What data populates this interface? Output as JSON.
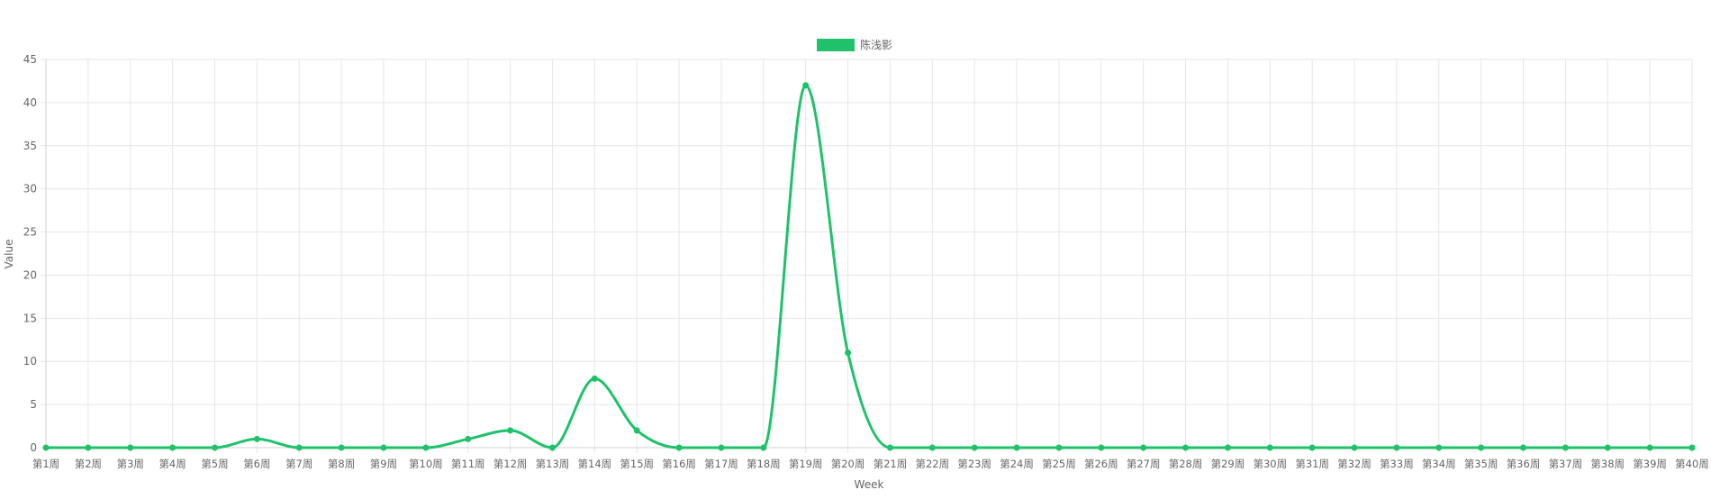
{
  "chart_data": {
    "type": "line",
    "categories": [
      "第1周",
      "第2周",
      "第3周",
      "第4周",
      "第5周",
      "第6周",
      "第7周",
      "第8周",
      "第9周",
      "第10周",
      "第11周",
      "第12周",
      "第13周",
      "第14周",
      "第15周",
      "第16周",
      "第17周",
      "第18周",
      "第19周",
      "第20周",
      "第21周",
      "第22周",
      "第23周",
      "第24周",
      "第25周",
      "第26周",
      "第27周",
      "第28周",
      "第29周",
      "第30周",
      "第31周",
      "第32周",
      "第33周",
      "第34周",
      "第35周",
      "第36周",
      "第37周",
      "第38周",
      "第39周",
      "第40周"
    ],
    "series": [
      {
        "name": "陈浅影",
        "color": "#1fc26b",
        "values": [
          0,
          0,
          0,
          0,
          0,
          1,
          0,
          0,
          0,
          0,
          1,
          2,
          0,
          8,
          2,
          0,
          0,
          0,
          42,
          11,
          0,
          0,
          0,
          0,
          0,
          0,
          0,
          0,
          0,
          0,
          0,
          0,
          0,
          0,
          0,
          0,
          0,
          0,
          0,
          0
        ]
      }
    ],
    "xlabel": "Week",
    "ylabel": "Value",
    "ylim": [
      0,
      45
    ],
    "yticks": [
      0,
      5,
      10,
      15,
      20,
      25,
      30,
      35,
      40,
      45
    ],
    "grid": true,
    "legend_position": "top-center",
    "grid_color": "#e6e6e6",
    "text_color": "#666666"
  }
}
